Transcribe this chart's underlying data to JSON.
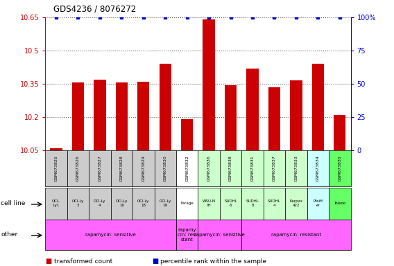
{
  "title": "GDS4236 / 8076272",
  "samples": [
    "GSM673825",
    "GSM673826",
    "GSM673827",
    "GSM673828",
    "GSM673829",
    "GSM673830",
    "GSM673832",
    "GSM673836",
    "GSM673838",
    "GSM673831",
    "GSM673837",
    "GSM673833",
    "GSM673834",
    "GSM673835"
  ],
  "bar_values": [
    10.06,
    10.355,
    10.37,
    10.355,
    10.36,
    10.44,
    10.19,
    10.64,
    10.345,
    10.42,
    10.335,
    10.365,
    10.44,
    10.21
  ],
  "percentile_values": [
    100,
    100,
    100,
    100,
    100,
    100,
    100,
    100,
    100,
    100,
    100,
    100,
    100,
    100
  ],
  "ymin": 10.05,
  "ymax": 10.65,
  "y2min": 0,
  "y2max": 100,
  "yticks": [
    10.05,
    10.2,
    10.35,
    10.5,
    10.65
  ],
  "y2ticks": [
    0,
    25,
    50,
    75,
    100
  ],
  "bar_color": "#cc0000",
  "dot_color": "#0000cc",
  "cell_line_labels": [
    "OCI-\nLy1",
    "OCI-Ly\n3",
    "OCI-Ly\n4",
    "OCI-Ly\n10",
    "OCI-Ly\n18",
    "OCI-Ly\n19",
    "Farage",
    "WSU-N\nIH",
    "SUDHL\n6",
    "SUDHL\n8",
    "SUDHL\n4",
    "Karpas\n422",
    "Pfeiff\ner",
    "Toledo"
  ],
  "cell_line_bg": [
    "#cccccc",
    "#cccccc",
    "#cccccc",
    "#cccccc",
    "#cccccc",
    "#cccccc",
    "#ffffff",
    "#ccffcc",
    "#ccffcc",
    "#ccffcc",
    "#ccffcc",
    "#ccffcc",
    "#ccffff",
    "#66ff66"
  ],
  "sample_bg": [
    "#cccccc",
    "#cccccc",
    "#cccccc",
    "#cccccc",
    "#cccccc",
    "#cccccc",
    "#ffffff",
    "#ccffcc",
    "#ccffcc",
    "#ccffcc",
    "#ccffcc",
    "#ccffcc",
    "#ccffff",
    "#66ff66"
  ],
  "other_groups": [
    {
      "start": 0,
      "end": 5,
      "bg": "#ff66ff",
      "label": "rapamycin: sensitive"
    },
    {
      "start": 6,
      "end": 6,
      "bg": "#ff66ff",
      "label": "rapamy\ncin: resi\nstant"
    },
    {
      "start": 7,
      "end": 8,
      "bg": "#ff66ff",
      "label": "rapamycin: sensitive"
    },
    {
      "start": 9,
      "end": 13,
      "bg": "#ff66ff",
      "label": "rapamycin: resistant"
    }
  ],
  "grid_color": "#666666",
  "bg_color": "#ffffff"
}
